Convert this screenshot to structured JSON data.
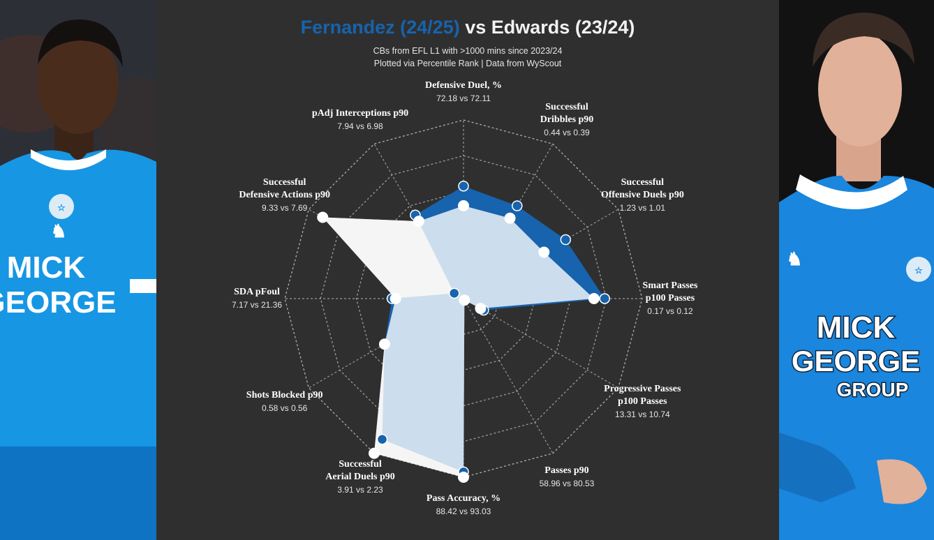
{
  "title": {
    "player1": "Fernandez (24/25)",
    "vs": "vs",
    "player2": "Edwards (23/24)"
  },
  "subtitle_line1": "CBs from EFL L1 with  >1000 mins since 2023/24",
  "subtitle_line2": "Plotted via Percentile Rank | Data from WyScout",
  "colors": {
    "player1": "#1763ad",
    "player2": "#ffffff",
    "background": "#2f2f2f",
    "grid": "#bdbdbd"
  },
  "photos": {
    "left": {
      "shirt_text_1": "MICK",
      "shirt_text_2": "GEORGE"
    },
    "right": {
      "shirt_text_1": "MICK",
      "shirt_text_2": "GEORGE",
      "shirt_text_3": "GROUP"
    }
  },
  "chart_data": {
    "type": "radar",
    "scale": "percentile rank",
    "rmax": 100,
    "grid_rings": [
      20,
      40,
      60,
      80,
      100
    ],
    "series": [
      {
        "name": "Fernandez (24/25)",
        "color": "#1763ad",
        "values": [
          63,
          60,
          66,
          79,
          13,
          1,
          97,
          91,
          51,
          40,
          6,
          54
        ]
      },
      {
        "name": "Edwards (23/24)",
        "color": "#ffffff",
        "values": [
          52,
          52,
          52,
          73,
          11,
          1,
          100,
          100,
          51,
          38,
          91,
          50
        ]
      }
    ],
    "axes": [
      {
        "name": "Defensive Duel, %",
        "values_text": "72.18 vs 72.11"
      },
      {
        "name": "Successful\nDribbles p90",
        "values_text": "0.44 vs 0.39"
      },
      {
        "name": "Successful\nOffensive Duels p90",
        "values_text": "1.23 vs 1.01"
      },
      {
        "name": "Smart Passes\np100 Passes",
        "values_text": "0.17 vs 0.12"
      },
      {
        "name": "Progressive Passes\np100 Passes",
        "values_text": "13.31 vs 10.74"
      },
      {
        "name": "Passes p90",
        "values_text": "58.96 vs 80.53"
      },
      {
        "name": "Pass Accuracy, %",
        "values_text": "88.42 vs 93.03"
      },
      {
        "name": "Successful\nAerial Duels p90",
        "values_text": "3.91 vs 2.23"
      },
      {
        "name": "Shots Blocked p90",
        "values_text": "0.58 vs 0.56"
      },
      {
        "name": "SDA pFoul",
        "values_text": "7.17 vs 21.36"
      },
      {
        "name": "Successful\nDefensive Actions p90",
        "values_text": "9.33 vs 7.69"
      },
      {
        "name": "pAdj Interceptions p90",
        "values_text": "7.94 vs 6.98"
      }
    ]
  }
}
